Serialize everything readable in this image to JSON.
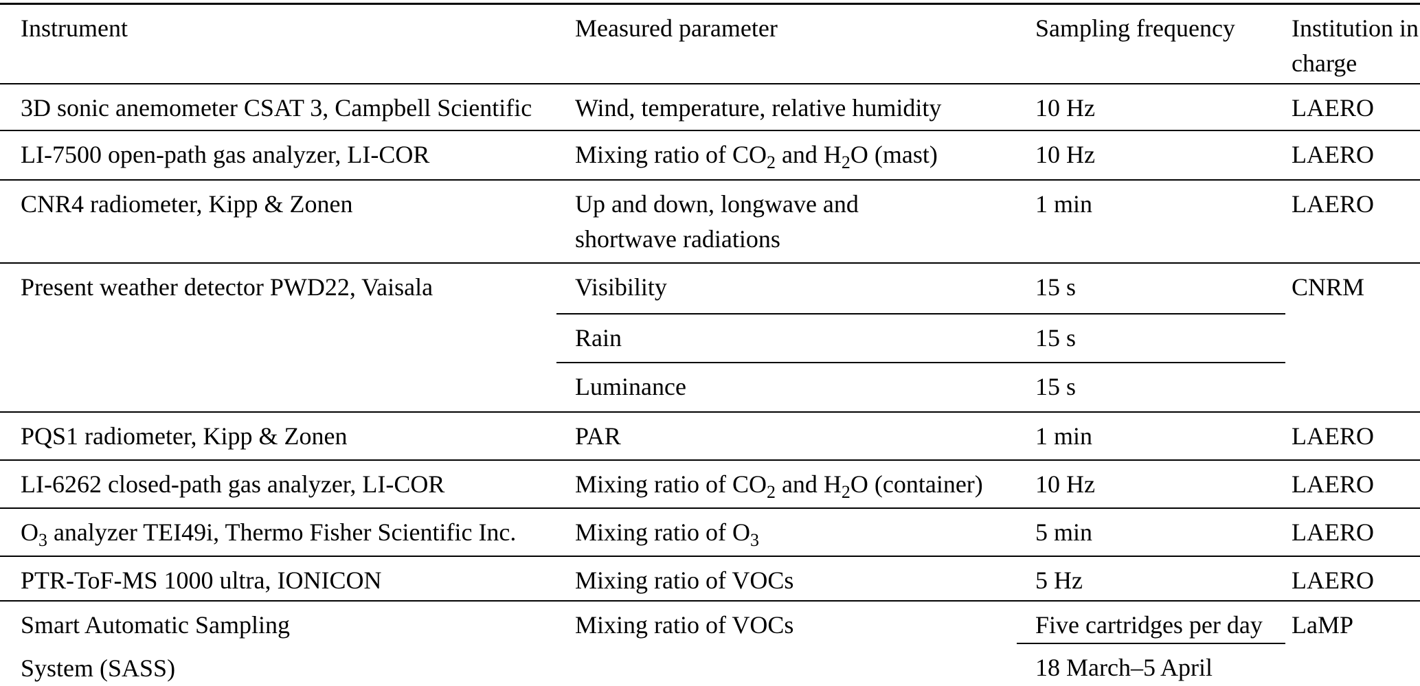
{
  "table": {
    "headers": {
      "instrument": "Instrument",
      "parameter": "Measured parameter",
      "frequency": "Sampling frequency",
      "institution": "Institution in charge"
    },
    "rows": [
      {
        "instrument": "3D sonic anemometer CSAT 3, Campbell Scientific",
        "parameter": "Wind, temperature, relative humidity",
        "frequency": "10 Hz",
        "institution": "LAERO"
      },
      {
        "instrument": "LI-7500 open-path gas analyzer, LI-COR",
        "parameter_html": "Mixing ratio of CO<sub>2</sub> and H<sub>2</sub>O (mast)",
        "frequency": "10 Hz",
        "institution": "LAERO"
      },
      {
        "instrument": "CNR4 radiometer, Kipp & Zonen",
        "parameter_html": "Up and down, longwave and<br>shortwave radiations",
        "frequency": "1 min",
        "institution": "LAERO"
      },
      {
        "instrument": "Present weather detector PWD22, Vaisala",
        "institution": "CNRM",
        "sub_rows": [
          {
            "parameter": "Visibility",
            "frequency": "15 s"
          },
          {
            "parameter": "Rain",
            "frequency": "15 s"
          },
          {
            "parameter": "Luminance",
            "frequency": "15 s"
          }
        ]
      },
      {
        "instrument": "PQS1 radiometer, Kipp & Zonen",
        "parameter": "PAR",
        "frequency": "1 min",
        "institution": "LAERO"
      },
      {
        "instrument": "LI-6262 closed-path gas analyzer, LI-COR",
        "parameter_html": "Mixing ratio of CO<sub>2</sub> and H<sub>2</sub>O (container)",
        "frequency": "10 Hz",
        "institution": "LAERO"
      },
      {
        "instrument_html": "O<sub>3</sub> analyzer TEI49i, Thermo Fisher Scientific Inc.",
        "parameter_html": "Mixing ratio of O<sub>3</sub>",
        "frequency": "5 min",
        "institution": "LAERO"
      },
      {
        "instrument": "PTR-ToF-MS 1000 ultra, IONICON",
        "parameter": "Mixing ratio of VOCs",
        "frequency": "5 Hz",
        "institution": "LAERO"
      },
      {
        "instrument_line1": "Smart Automatic Sampling",
        "instrument_line2": "System (SASS)",
        "parameter": "Mixing ratio of VOCs",
        "institution": "LaMP",
        "frequency_rows": [
          "Five cartridges per day",
          "18 March–5 April"
        ]
      }
    ]
  }
}
